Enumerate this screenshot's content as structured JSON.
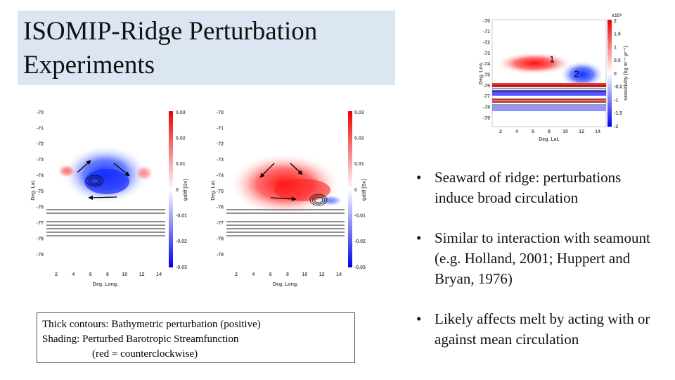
{
  "title": "ISOMIP-Ridge Perturbation Experiments",
  "sensitivity_figure": {
    "x_label": "Deg. Lat.",
    "y_label": "Deg. Lon.",
    "x_ticks": [
      "2",
      "4",
      "6",
      "8",
      "10",
      "12",
      "14"
    ],
    "y_ticks": [
      "-70",
      "-71",
      "-72",
      "-73",
      "-74",
      "-75",
      "-76",
      "-77",
      "-78",
      "-79"
    ],
    "colorbar_ticks": [
      "2",
      "1.5",
      "1",
      "0.5",
      "0",
      "-0.5",
      "-1",
      "-1.5",
      "-2"
    ],
    "colorbar_scale": "x10⁸",
    "colorbar_label": "sensitivity (kg m⁻¹ yr⁻¹)",
    "annotations": [
      "1",
      "2"
    ]
  },
  "streamfunction_panels": [
    {
      "x_label": "Deg. Long.",
      "y_label": "Deg. Lat.",
      "x_ticks": [
        "2",
        "4",
        "6",
        "8",
        "10",
        "12",
        "14"
      ],
      "y_ticks": [
        "-70",
        "-71",
        "-72",
        "-73",
        "-74",
        "-75",
        "-76",
        "-77",
        "-78",
        "-79"
      ],
      "colorbar_ticks": [
        "0.03",
        "0.02",
        "0.01",
        "0",
        "-0.01",
        "-0.02",
        "-0.03"
      ],
      "colorbar_label": "ψdiff [Sv]"
    },
    {
      "x_label": "Deg. Long.",
      "y_label": "Deg. Lat.",
      "x_ticks": [
        "2",
        "4",
        "6",
        "8",
        "10",
        "12",
        "14"
      ],
      "y_ticks": [
        "-70",
        "-71",
        "-72",
        "-73",
        "-74",
        "-75",
        "-76",
        "-77",
        "-78",
        "-79"
      ],
      "colorbar_ticks": [
        "0.03",
        "0.02",
        "0.01",
        "0",
        "-0.01",
        "-0.02",
        "-0.03"
      ],
      "colorbar_label": "ψdiff [Sv]"
    }
  ],
  "bullets": [
    "Seaward of ridge: perturbations induce broad circulation",
    "Similar to interaction with seamount (e.g. Holland, 2001; Huppert and Bryan, 1976)",
    "Likely affects melt by acting with or against mean circulation"
  ],
  "caption": [
    "Thick contours: Bathymetric perturbation (positive)",
    "Shading: Perturbed Barotropic Streamfunction",
    "(red = counterclockwise)"
  ]
}
